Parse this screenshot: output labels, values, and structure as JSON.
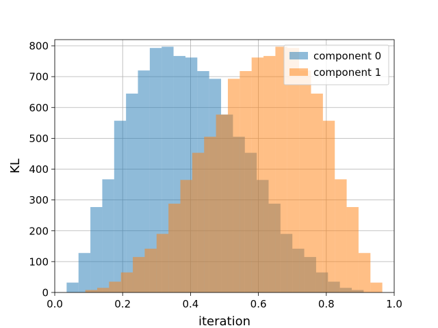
{
  "chart_data": {
    "type": "bar",
    "subtype": "overlapping-histogram",
    "title": "",
    "xlabel": "iteration",
    "ylabel": "KL",
    "xlim": [
      0.0,
      1.0
    ],
    "ylim": [
      0,
      820
    ],
    "xticks": [
      0.0,
      0.2,
      0.4,
      0.6,
      0.8,
      1.0
    ],
    "xtick_labels": [
      "0.0",
      "0.2",
      "0.4",
      "0.6",
      "0.8",
      "1.0"
    ],
    "yticks": [
      0,
      100,
      200,
      300,
      400,
      500,
      600,
      700,
      800
    ],
    "ytick_labels": [
      "0",
      "100",
      "200",
      "300",
      "400",
      "500",
      "600",
      "700",
      "800"
    ],
    "grid": true,
    "legend_position": "top-right",
    "alpha": 0.5,
    "series": [
      {
        "name": "component 0",
        "color": "#1f77b4",
        "bin_edges": [
          0.035,
          0.07,
          0.105,
          0.14,
          0.175,
          0.21,
          0.245,
          0.28,
          0.315,
          0.35,
          0.385,
          0.42,
          0.455,
          0.49,
          0.525,
          0.56,
          0.595,
          0.63,
          0.665,
          0.7,
          0.735,
          0.77,
          0.805,
          0.84,
          0.875,
          0.91
        ],
        "values": [
          32,
          128,
          277,
          367,
          557,
          645,
          720,
          793,
          797,
          767,
          762,
          718,
          693,
          577,
          505,
          453,
          365,
          288,
          190,
          142,
          115,
          65,
          35,
          15,
          8
        ]
      },
      {
        "name": "component 1",
        "color": "#ff7f0e",
        "bin_edges": [
          0.09,
          0.125,
          0.16,
          0.195,
          0.23,
          0.265,
          0.3,
          0.335,
          0.37,
          0.405,
          0.44,
          0.475,
          0.51,
          0.545,
          0.58,
          0.615,
          0.65,
          0.685,
          0.72,
          0.755,
          0.79,
          0.825,
          0.86,
          0.895,
          0.93,
          0.965
        ],
        "values": [
          8,
          15,
          35,
          65,
          115,
          142,
          190,
          288,
          365,
          453,
          505,
          577,
          693,
          718,
          762,
          767,
          797,
          793,
          720,
          645,
          557,
          367,
          277,
          128,
          32
        ]
      }
    ]
  }
}
